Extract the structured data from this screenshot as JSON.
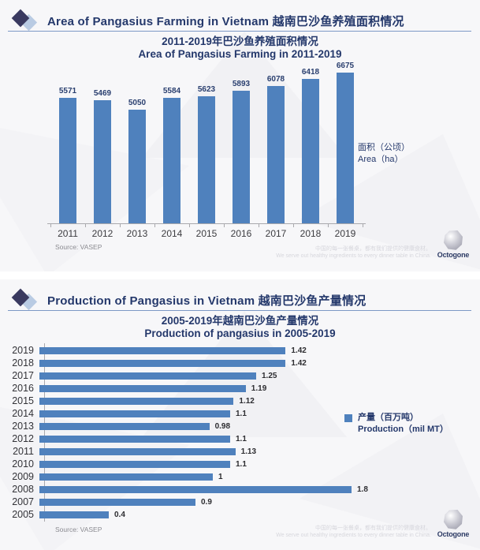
{
  "colors": {
    "bar": "#4f81bd",
    "title": "#24386b",
    "logo_dark": "#3a3a60",
    "logo_light": "#b9cbe3"
  },
  "panels": [
    {
      "header": "Area of Pangasius Farming in Vietnam 越南巴沙鱼养殖面积情况",
      "title_zh": "2011-2019年巴沙鱼养殖面积情况",
      "title_en": "Area of Pangasius Farming in 2011-2019",
      "legend_line1": "面积（公顷）",
      "legend_line2": "Area（ha）",
      "source": "Source: VASEP"
    },
    {
      "header": "Production of Pangasius in Vietnam 越南巴沙鱼产量情况",
      "title_zh": "2005-2019年越南巴沙鱼产量情况",
      "title_en": "Production of pangasius in 2005-2019",
      "legend_line1": "产量（百万吨）",
      "legend_line2": "Production（mil MT）",
      "source": "Source: VASEP"
    }
  ],
  "watermark": {
    "zh": "中国的每一张餐桌，都有我们提供的健康食材。",
    "en": "We serve out healthy ingredients to every dinner table in China."
  },
  "logo_text": "Octogone",
  "chart_data": [
    {
      "type": "bar",
      "orientation": "vertical",
      "title": "2011-2019年巴沙鱼养殖面积情况 / Area of Pangasius Farming in 2011-2019",
      "categories": [
        "2011",
        "2012",
        "2013",
        "2014",
        "2015",
        "2016",
        "2017",
        "2018",
        "2019"
      ],
      "values": [
        5571,
        5469,
        5050,
        5584,
        5623,
        5893,
        6078,
        6418,
        6675
      ],
      "legend": "面积（公顷） Area（ha）",
      "ylabel": "Area (ha)",
      "ylim": [
        0,
        7000
      ],
      "grid": false,
      "legend_position": "right",
      "source": "Source: VASEP"
    },
    {
      "type": "bar",
      "orientation": "horizontal",
      "title": "2005-2019年越南巴沙鱼产量情况 / Production of pangasius in 2005-2019",
      "categories": [
        "2019",
        "2018",
        "2017",
        "2016",
        "2015",
        "2014",
        "2013",
        "2012",
        "2011",
        "2010",
        "2009",
        "2008",
        "2007",
        "2005"
      ],
      "values": [
        1.42,
        1.42,
        1.25,
        1.19,
        1.12,
        1.1,
        0.98,
        1.1,
        1.13,
        1.1,
        1,
        1.8,
        0.9,
        0.4
      ],
      "legend": "产量（百万吨） Production（mil MT）",
      "xlabel": "Production (mil MT)",
      "xlim": [
        0,
        2
      ],
      "grid": false,
      "legend_position": "right",
      "source": "Source: VASEP"
    }
  ]
}
